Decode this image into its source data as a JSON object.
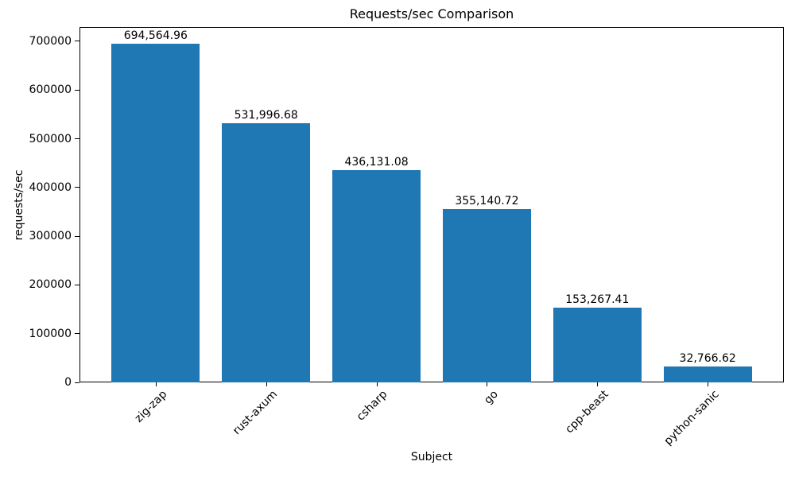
{
  "chart_data": {
    "type": "bar",
    "title": "Requests/sec Comparison",
    "xlabel": "Subject",
    "ylabel": "requests/sec",
    "categories": [
      "zig-zap",
      "rust-axum",
      "csharp",
      "go",
      "cpp-beast",
      "python-sanic"
    ],
    "values": [
      694564.96,
      531996.68,
      436131.08,
      355140.72,
      153267.41,
      32766.62
    ],
    "value_labels": [
      "694,564.96",
      "531,996.68",
      "436,131.08",
      "355,140.72",
      "153,267.41",
      "32,766.62"
    ],
    "y_ticks": [
      0,
      100000,
      200000,
      300000,
      400000,
      500000,
      600000,
      700000
    ],
    "y_tick_labels": [
      "0",
      "100000",
      "200000",
      "300000",
      "400000",
      "500000",
      "600000",
      "700000"
    ],
    "ylim": [
      0,
      729293
    ],
    "bar_color": "#1f77b4",
    "bar_width_fraction": 0.8,
    "x_margin": 0.05,
    "x_tick_rotation_deg": 45,
    "grid": false,
    "legend_position": "none"
  }
}
